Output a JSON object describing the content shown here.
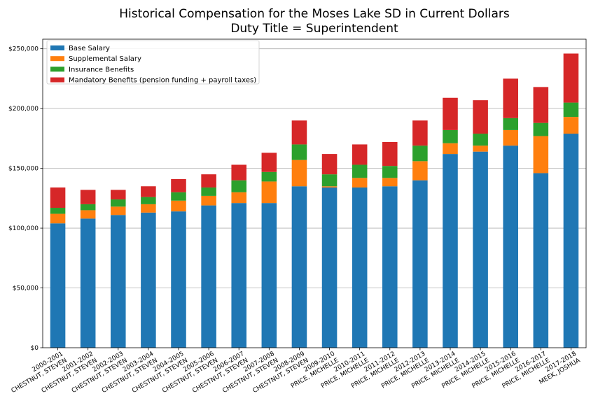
{
  "chart_data": {
    "type": "bar",
    "stacked": true,
    "title": "Historical Compensation for the Moses Lake SD in Current Dollars",
    "subtitle": "Duty Title = Superintendent",
    "xlabel": "",
    "ylabel": "",
    "ylim": [
      0,
      258000
    ],
    "yticks": [
      0,
      50000,
      100000,
      150000,
      200000,
      250000
    ],
    "ytick_labels": [
      "$0",
      "$50,000",
      "$100,000",
      "$150,000",
      "$200,000",
      "$250,000"
    ],
    "grid": "horizontal",
    "legend_position": "top-left",
    "categories": [
      {
        "year": "2000-2001",
        "name": "CHESTNUT, STEVEN"
      },
      {
        "year": "2001-2002",
        "name": "CHESTNUT, STEVEN"
      },
      {
        "year": "2002-2003",
        "name": "CHESTNUT, STEVEN"
      },
      {
        "year": "2003-2004",
        "name": "CHESTNUT, STEVEN"
      },
      {
        "year": "2004-2005",
        "name": "CHESTNUT, STEVEN"
      },
      {
        "year": "2005-2006",
        "name": "CHESTNUT, STEVEN"
      },
      {
        "year": "2006-2007",
        "name": "CHESTNUT, STEVEN"
      },
      {
        "year": "2007-2008",
        "name": "CHESTNUT, STEVEN"
      },
      {
        "year": "2008-2009",
        "name": "CHESTNUT, STEVEN"
      },
      {
        "year": "2009-2010",
        "name": "PRICE, MICHELLE"
      },
      {
        "year": "2010-2011",
        "name": "PRICE, MICHELLE"
      },
      {
        "year": "2011-2012",
        "name": "PRICE, MICHELLE"
      },
      {
        "year": "2012-2013",
        "name": "PRICE, MICHELLE"
      },
      {
        "year": "2013-2014",
        "name": "PRICE, MICHELLE"
      },
      {
        "year": "2014-2015",
        "name": "PRICE, MICHELLE"
      },
      {
        "year": "2015-2016",
        "name": "PRICE, MICHELLE"
      },
      {
        "year": "2016-2017",
        "name": "PRICE, MICHELLE"
      },
      {
        "year": "2017-2018",
        "name": "MEEK, JOSHUA"
      }
    ],
    "series": [
      {
        "name": "Base Salary",
        "color": "#1f77b4",
        "values": [
          104000,
          108000,
          111000,
          113000,
          114000,
          119000,
          121000,
          121000,
          135000,
          134000,
          134000,
          135000,
          140000,
          162000,
          164000,
          169000,
          146000,
          179000
        ]
      },
      {
        "name": "Supplemental Salary",
        "color": "#ff7f0e",
        "values": [
          8000,
          7000,
          7000,
          7000,
          9000,
          8000,
          9000,
          18000,
          22000,
          1000,
          8000,
          7000,
          16000,
          9000,
          5000,
          13000,
          31000,
          14000
        ]
      },
      {
        "name": "Insurance Benefits",
        "color": "#2ca02c",
        "values": [
          5000,
          5000,
          6000,
          6000,
          7000,
          7000,
          10000,
          8000,
          13000,
          10000,
          11000,
          10000,
          13000,
          11000,
          10000,
          10000,
          11000,
          12000
        ]
      },
      {
        "name": "Mandatory Benefits (pension funding + payroll taxes)",
        "color": "#d62728",
        "values": [
          17000,
          12000,
          8000,
          9000,
          11000,
          11000,
          13000,
          16000,
          20000,
          17000,
          17000,
          20000,
          21000,
          27000,
          28000,
          33000,
          30000,
          41000
        ]
      }
    ]
  }
}
